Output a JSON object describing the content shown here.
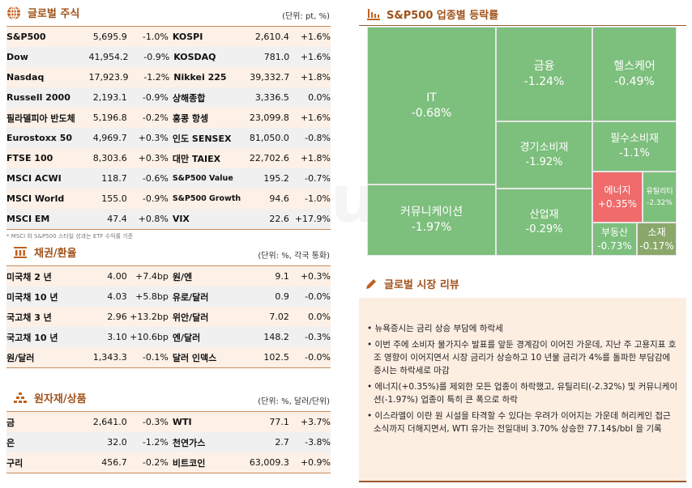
{
  "accent": "#c0601e",
  "global_stocks": {
    "title": "글로벌 주식",
    "unit": "(단위: pt, %)",
    "note": "* MSCI 와 S&P500 스타일 성과는 ETF 수익률 기준",
    "rows": [
      [
        "S&P500",
        "5,695.9",
        "-1.0%",
        "KOSPI",
        "2,610.4",
        "+1.6%"
      ],
      [
        "Dow",
        "41,954.2",
        "-0.9%",
        "KOSDAQ",
        "781.0",
        "+1.6%"
      ],
      [
        "Nasdaq",
        "17,923.9",
        "-1.2%",
        "Nikkei 225",
        "39,332.7",
        "+1.8%"
      ],
      [
        "Russell 2000",
        "2,193.1",
        "-0.9%",
        "상해종합",
        "3,336.5",
        "0.0%"
      ],
      [
        "필라델피아 반도체",
        "5,196.8",
        "-0.2%",
        "홍콩 항셍",
        "23,099.8",
        "+1.6%"
      ],
      [
        "Eurostoxx 50",
        "4,969.7",
        "+0.3%",
        "인도 SENSEX",
        "81,050.0",
        "-0.8%"
      ],
      [
        "FTSE 100",
        "8,303.6",
        "+0.3%",
        "대만 TAIEX",
        "22,702.6",
        "+1.8%"
      ],
      [
        "MSCI ACWI",
        "118.7",
        "-0.6%",
        "S&P500 Value",
        "195.2",
        "-0.7%"
      ],
      [
        "MSCI World",
        "155.0",
        "-0.9%",
        "S&P500 Growth",
        "94.6",
        "-1.0%"
      ],
      [
        "MSCI EM",
        "47.4",
        "+0.8%",
        "VIX",
        "22.6",
        "+17.9%"
      ]
    ]
  },
  "bonds_fx": {
    "title": "채권/환율",
    "unit": "(단위: %, 각국 통화)",
    "rows": [
      [
        "미국채 2 년",
        "4.00",
        "+7.4bp",
        "원/엔",
        "9.1",
        "+0.3%"
      ],
      [
        "미국채 10 년",
        "4.03",
        "+5.8bp",
        "유로/달러",
        "0.9",
        "-0.0%"
      ],
      [
        "국고채 3 년",
        "2.96",
        "+13.2bp",
        "위안/달러",
        "7.02",
        "0.0%"
      ],
      [
        "국고채 10 년",
        "3.10",
        "+10.6bp",
        "엔/달러",
        "148.2",
        "-0.3%"
      ],
      [
        "원/달러",
        "1,343.3",
        "-0.1%",
        "달러 인덱스",
        "102.5",
        "-0.0%"
      ]
    ]
  },
  "commodities": {
    "title": "원자재/상품",
    "unit": "(단위: %, 달러/단위)",
    "rows": [
      [
        "금",
        "2,641.0",
        "-0.3%",
        "WTI",
        "77.1",
        "+3.7%"
      ],
      [
        "은",
        "32.0",
        "-1.2%",
        "천연가스",
        "2.7",
        "-3.8%"
      ],
      [
        "구리",
        "456.7",
        "-0.2%",
        "비트코인",
        "63,009.3",
        "+0.9%"
      ]
    ]
  },
  "sectors": {
    "title": "S&P500 업종별 등락률",
    "tiles": [
      {
        "name": "IT",
        "change": "-0.68%",
        "color": "#7dbf7d"
      },
      {
        "name": "커뮤니케이션",
        "change": "-1.97%",
        "color": "#7dbf7d"
      },
      {
        "name": "금융",
        "change": "-1.24%",
        "color": "#7dbf7d"
      },
      {
        "name": "헬스케어",
        "change": "-0.49%",
        "color": "#7dbf7d"
      },
      {
        "name": "경기소비재",
        "change": "-1.92%",
        "color": "#7dbf7d"
      },
      {
        "name": "산업재",
        "change": "-0.29%",
        "color": "#7dbf7d"
      },
      {
        "name": "필수소비재",
        "change": "-1.1%",
        "color": "#7dbf7d"
      },
      {
        "name": "에너지",
        "change": "+0.35%",
        "color": "#f06b6b"
      },
      {
        "name": "유틸리티",
        "change": "-2.32%",
        "color": "#7dbf7d"
      },
      {
        "name": "부동산",
        "change": "-0.73%",
        "color": "#7dbf7d"
      },
      {
        "name": "소재",
        "change": "-0.17%",
        "color": "#8aa86a"
      }
    ]
  },
  "review": {
    "title": "글로벌 시장 리뷰",
    "items": [
      "뉴욕증시는 금리 상승 부담에 하락세",
      "이번 주에 소비자 물가지수 발표를 앞둔 경계감이 이어진 가운데, 지난 주 고용지표 호조 영향이 이어지면서 시장 금리가 상승하고 10 년물 금리가 4%를 돌파한 부담감에 증시는 하락세로 마감",
      "에너지(+0.35%)를 제외한 모든 업종이 하락했고, 유틸리티(-2.32%) 및 커뮤니케이션(-1.97%) 업종이 특히 큰 폭으로 하락",
      "이스라엘이 이란 원 시설을 타격할 수 있다는 우려가 이어지는 가운데 허리케인 접근 소식까지 더해지면서, WTI 유가는 전일대비 3.70% 상승한 77.14$/bbl 을 기록"
    ]
  }
}
